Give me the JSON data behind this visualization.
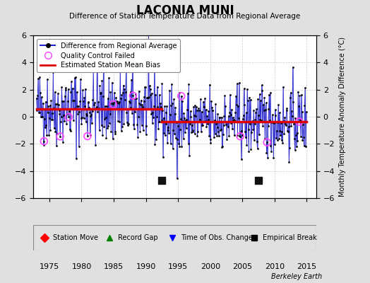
{
  "title": "LACONIA MUNI",
  "subtitle": "Difference of Station Temperature Data from Regional Average",
  "ylabel": "Monthly Temperature Anomaly Difference (°C)",
  "xlabel_note": "Berkeley Earth",
  "xlim": [
    1972.5,
    2016.5
  ],
  "ylim": [
    -6,
    6
  ],
  "yticks": [
    -6,
    -4,
    -2,
    0,
    2,
    4,
    6
  ],
  "xticks": [
    1975,
    1980,
    1985,
    1990,
    1995,
    2000,
    2005,
    2010,
    2015
  ],
  "mean_bias_early": 0.6,
  "mean_bias_late": -0.35,
  "break_year1": 1992.5,
  "break_year2": 2007.5,
  "start_year": 1973,
  "end_year": 2015,
  "background_color": "#e0e0e0",
  "plot_bg_color": "#ffffff",
  "line_color": "#2222cc",
  "dot_color": "#000000",
  "bias_color": "#dd0000",
  "qc_color": "#ff44ff",
  "empirical_break_color": "#111111",
  "seed": 42,
  "qc_indices": [
    14,
    44,
    60,
    95,
    143,
    180,
    270,
    380,
    430,
    490
  ],
  "noise_scale": 1.3
}
